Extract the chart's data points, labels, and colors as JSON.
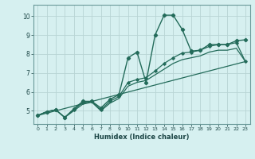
{
  "xlabel": "Humidex (Indice chaleur)",
  "xlim": [
    -0.5,
    23.5
  ],
  "ylim": [
    4.3,
    10.6
  ],
  "xticks": [
    0,
    1,
    2,
    3,
    4,
    5,
    6,
    7,
    8,
    9,
    10,
    11,
    12,
    13,
    14,
    15,
    16,
    17,
    18,
    19,
    20,
    21,
    22,
    23
  ],
  "yticks": [
    5,
    6,
    7,
    8,
    9,
    10
  ],
  "bg_color": "#d6f0f0",
  "grid_color": "#b8d4d4",
  "line_color": "#236b5a",
  "curve1_x": [
    0,
    1,
    2,
    3,
    4,
    5,
    6,
    7,
    8,
    9,
    10,
    11,
    12,
    13,
    14,
    15,
    16,
    17,
    18,
    19,
    20,
    21,
    22,
    23
  ],
  "curve1_y": [
    4.75,
    4.95,
    5.05,
    4.65,
    5.1,
    5.5,
    5.5,
    5.15,
    5.6,
    5.85,
    7.8,
    8.1,
    6.5,
    9.0,
    10.05,
    10.05,
    9.3,
    8.15,
    8.2,
    8.5,
    8.5,
    8.5,
    8.7,
    8.75
  ],
  "curve2_x": [
    0,
    1,
    2,
    3,
    4,
    5,
    6,
    7,
    8,
    9,
    10,
    11,
    12,
    13,
    14,
    15,
    16,
    17,
    18,
    19,
    20,
    21,
    22,
    23
  ],
  "curve2_y": [
    4.75,
    4.95,
    5.05,
    4.65,
    5.05,
    5.45,
    5.5,
    5.05,
    5.5,
    5.75,
    6.5,
    6.65,
    6.75,
    7.1,
    7.5,
    7.8,
    8.05,
    8.1,
    8.2,
    8.4,
    8.5,
    8.5,
    8.6,
    7.6
  ],
  "curve3_x": [
    0,
    1,
    2,
    3,
    4,
    5,
    6,
    7,
    8,
    9,
    10,
    11,
    12,
    13,
    14,
    15,
    16,
    17,
    18,
    19,
    20,
    21,
    22,
    23
  ],
  "curve3_y": [
    4.75,
    4.95,
    5.05,
    4.65,
    5.0,
    5.35,
    5.45,
    5.0,
    5.4,
    5.65,
    6.3,
    6.5,
    6.6,
    6.9,
    7.2,
    7.5,
    7.7,
    7.8,
    7.9,
    8.1,
    8.2,
    8.2,
    8.3,
    7.6
  ],
  "curve4_x": [
    0,
    23
  ],
  "curve4_y": [
    4.75,
    7.6
  ]
}
